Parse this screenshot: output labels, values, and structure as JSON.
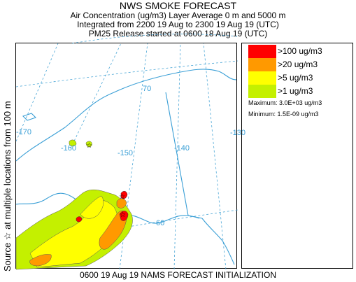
{
  "header": {
    "title": "NWS SMOKE FORECAST",
    "line1": "Air Concentration (ug/m3) Layer Average    0 m and  5000 m",
    "line2": "Integrated from 2200 19 Aug to 2300 19 Aug 19 (UTC)",
    "line3": "PM25 Release started at 0600 18 Aug 19 (UTC)"
  },
  "side_label": "Source ☆  at multiple locations    from   100 m",
  "footer": "0600 19 Aug 19 NAMS FORECAST INITIALIZATION",
  "map": {
    "graticule_labels": {
      "lat70": "70",
      "lat60": "60",
      "lon_m170": "-170",
      "lon_m160": "-160",
      "lon_m150": "-150",
      "lon_m140": "-140",
      "lon_m130": "-130"
    },
    "colors": {
      "coast": "#3a9fd6",
      "level1": "#c4f000",
      "level5": "#ffff00",
      "level20": "#ff9900",
      "level100": "#ff0000"
    }
  },
  "legend": {
    "items": [
      {
        "label": ">100 ug/m3",
        "color": "#ff0000"
      },
      {
        "label": ">20 ug/m3",
        "color": "#ff9900"
      },
      {
        "label": ">5 ug/m3",
        "color": "#ffff00"
      },
      {
        "label": ">1 ug/m3",
        "color": "#c4f000"
      }
    ],
    "maximum": "Maximum: 3.0E+03 ug/m3",
    "minimum": "Minimum: 1.5E-09 ug/m3"
  }
}
